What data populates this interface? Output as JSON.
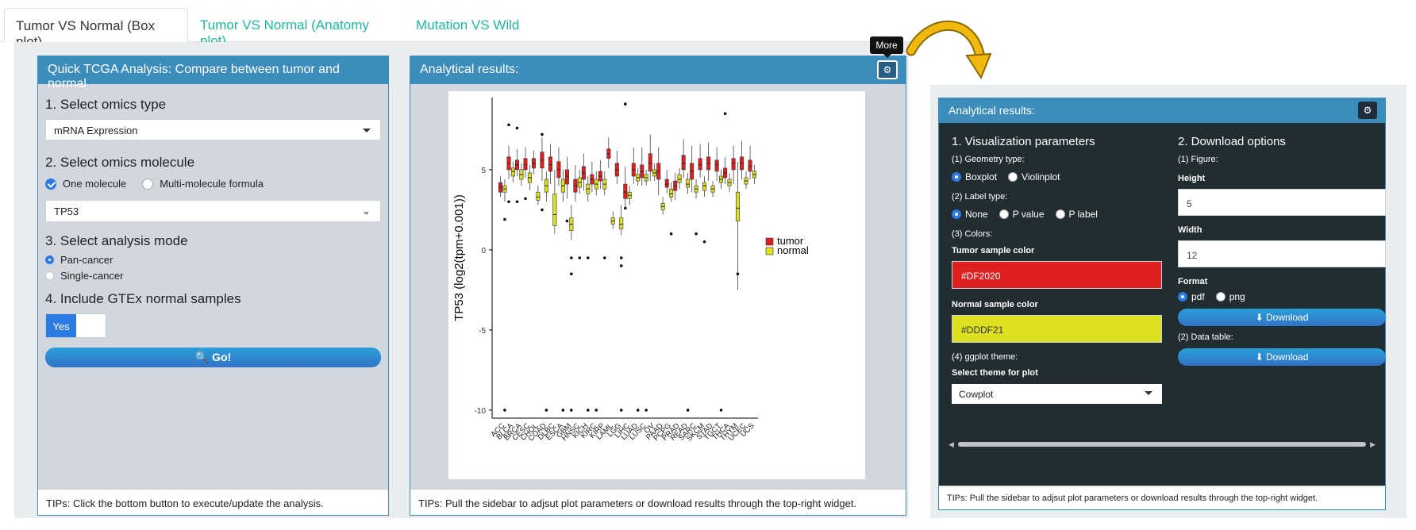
{
  "tabs": [
    {
      "label": "Tumor VS Normal (Box plot)"
    },
    {
      "label": "Tumor VS Normal (Anatomy plot)"
    },
    {
      "label": "Mutation VS Wild"
    }
  ],
  "left_panel": {
    "title": "Quick TCGA Analysis: Compare between tumor and normal",
    "step1": "1. Select omics type",
    "omics_type": "mRNA Expression",
    "step2": "2. Select omics molecule",
    "radio_one": "One molecule",
    "radio_multi": "Multi-molecule formula",
    "molecule": "TP53",
    "step3": "3. Select analysis mode",
    "mode_pan": "Pan-cancer",
    "mode_single": "Single-cancer",
    "step4": "4. Include GTEx normal samples",
    "toggle": "Yes",
    "go": "Go!",
    "tip": "TIPs: Click the bottom button to execute/update the analysis."
  },
  "mid_panel": {
    "title": "Analytical results:",
    "tooltip": "More",
    "tip": "TIPs: Pull the sidebar to adjsut plot parameters or download results through the top-right widget."
  },
  "right_panel": {
    "title": "Analytical results:",
    "viz_title": "1. Visualization parameters",
    "geom_label": "(1) Geometry type:",
    "geom_box": "Boxplot",
    "geom_violin": "Violinplot",
    "label_label": "(2) Label type:",
    "label_none": "None",
    "label_pvalue": "P value",
    "label_plabel": "P label",
    "colors_label": "(3) Colors:",
    "tumor_color_label": "Tumor sample color",
    "tumor_color": "#DF2020",
    "normal_color_label": "Normal sample color",
    "normal_color": "#DDDF21",
    "theme_label": "(4) ggplot theme:",
    "theme_select_label": "Select theme for plot",
    "theme": "Cowplot",
    "dl_title": "2. Download options",
    "figure_label": "(1) Figure:",
    "height_label": "Height",
    "height": "5",
    "width_label": "Width",
    "width": "12",
    "format_label": "Format",
    "fmt_pdf": "pdf",
    "fmt_png": "png",
    "download": "Download",
    "datatable_label": "(2) Data table:",
    "tip": "TIPs: Pull the sidebar to adjsut plot parameters or download results through the top-right widget."
  },
  "chart_data": {
    "type": "box",
    "ylabel": "TP53 (log2(tpm+0.001))",
    "ylim": [
      -10.5,
      9.5
    ],
    "yticks": [
      -10,
      -5,
      0,
      5
    ],
    "categories": [
      "ACC",
      "BLCA",
      "BRCA",
      "CESC",
      "CHOL",
      "COAD",
      "DLBC",
      "ESCA",
      "GBM",
      "HNSC",
      "KICH",
      "KIRC",
      "KIRP",
      "LAML",
      "LGG",
      "LIHC",
      "LUAD",
      "LUSC",
      "OV",
      "PAAD",
      "PCPG",
      "PRAD",
      "READ",
      "SARC",
      "SKCM",
      "STAD",
      "TGCT",
      "THCA",
      "THYM",
      "UCEC",
      "UCS"
    ],
    "series": [
      {
        "name": "tumor",
        "color": "#DF2020",
        "boxes": [
          [
            3.3,
            3.6,
            3.9,
            4.2,
            4.6
          ],
          [
            4.4,
            5.0,
            5.4,
            5.8,
            6.5
          ],
          [
            4.6,
            5.0,
            5.3,
            5.6,
            6.3
          ],
          [
            4.5,
            5.0,
            5.3,
            5.7,
            6.4
          ],
          [
            4.7,
            5.1,
            5.4,
            5.7,
            6.2
          ],
          [
            4.3,
            5.1,
            5.6,
            6.1,
            7.0
          ],
          [
            4.1,
            4.9,
            5.3,
            5.8,
            6.6
          ],
          [
            4.0,
            4.5,
            5.0,
            5.5,
            6.4
          ],
          [
            3.2,
            4.1,
            4.6,
            5.0,
            5.8
          ],
          [
            3.0,
            3.6,
            4.0,
            4.4,
            5.3
          ],
          [
            3.7,
            4.4,
            4.8,
            5.2,
            6.0
          ],
          [
            3.6,
            4.1,
            4.4,
            4.7,
            5.5
          ],
          [
            3.8,
            4.3,
            4.6,
            4.9,
            5.6
          ],
          [
            5.1,
            5.7,
            6.0,
            6.3,
            7.0
          ],
          [
            4.1,
            4.6,
            5.0,
            5.4,
            6.2
          ],
          [
            2.6,
            3.2,
            3.6,
            4.1,
            5.2
          ],
          [
            4.1,
            4.6,
            5.0,
            5.4,
            6.4
          ],
          [
            4.0,
            4.5,
            4.9,
            5.3,
            6.4
          ],
          [
            4.3,
            4.9,
            5.4,
            6.0,
            7.2
          ],
          [
            3.4,
            4.4,
            4.9,
            5.4,
            6.4
          ],
          [
            3.5,
            3.9,
            4.1,
            4.4,
            5.0
          ],
          [
            3.1,
            3.7,
            4.0,
            4.3,
            4.8
          ],
          [
            4.5,
            5.0,
            5.4,
            5.9,
            6.9
          ],
          [
            3.6,
            4.4,
            4.9,
            5.4,
            6.5
          ],
          [
            4.5,
            5.0,
            5.3,
            5.7,
            6.6
          ],
          [
            4.3,
            5.0,
            5.4,
            5.8,
            6.7
          ],
          [
            4.3,
            4.9,
            5.3,
            5.6,
            6.4
          ],
          [
            4.1,
            4.5,
            4.8,
            5.1,
            5.8
          ],
          [
            4.1,
            5.0,
            5.4,
            5.7,
            6.5
          ],
          [
            4.4,
            5.0,
            5.4,
            5.8,
            6.8
          ],
          [
            4.4,
            4.9,
            5.2,
            5.6,
            6.5
          ]
        ],
        "outliers": [
          [],
          [
            7.8,
            3.0
          ],
          [
            7.6,
            3.0
          ],
          [
            3.2
          ],
          [],
          [
            7.2,
            2.5
          ],
          [],
          [],
          [
            1.8
          ],
          [],
          [],
          [],
          [],
          [],
          [],
          [
            9.1,
            2.6
          ],
          [],
          [],
          [],
          [],
          [],
          [],
          [],
          [],
          [],
          [],
          [],
          [
            8.5
          ],
          [],
          [],
          []
        ]
      },
      {
        "name": "normal",
        "color": "#DDDF21",
        "boxes": [
          [
            3.0,
            3.6,
            3.8,
            4.0,
            4.4
          ],
          [
            4.2,
            4.6,
            4.9,
            5.1,
            5.5
          ],
          [
            4.0,
            4.4,
            4.7,
            5.0,
            5.4
          ],
          [
            3.7,
            4.2,
            4.5,
            4.8,
            5.3
          ],
          [
            2.8,
            3.1,
            3.3,
            3.6,
            4.0
          ],
          [
            3.0,
            3.6,
            4.0,
            4.4,
            4.9
          ],
          [
            1.0,
            1.5,
            2.2,
            3.5,
            5.0
          ],
          [
            3.0,
            3.6,
            4.0,
            4.4,
            5.0
          ],
          [
            0.6,
            1.2,
            1.6,
            2.0,
            2.8
          ],
          [
            3.5,
            3.9,
            4.2,
            4.5,
            5.0
          ],
          [
            3.0,
            3.5,
            3.8,
            4.1,
            4.6
          ],
          [
            3.4,
            3.8,
            4.1,
            4.4,
            4.9
          ],
          [
            3.4,
            3.8,
            4.1,
            4.4,
            4.9
          ],
          [
            1.3,
            1.6,
            1.8,
            2.0,
            2.4
          ],
          [
            0.9,
            1.3,
            1.6,
            2.0,
            2.8
          ],
          [
            2.8,
            3.2,
            3.4,
            3.6,
            4.0
          ],
          [
            4.0,
            4.3,
            4.5,
            4.7,
            5.1
          ],
          [
            4.0,
            4.3,
            4.5,
            4.7,
            5.0
          ],
          [
            4.3,
            4.6,
            4.8,
            5.0,
            5.4
          ],
          [
            2.2,
            2.5,
            2.7,
            2.9,
            3.3
          ],
          [
            3.0,
            3.3,
            3.5,
            3.8,
            4.2
          ],
          [
            3.8,
            4.2,
            4.4,
            4.7,
            5.1
          ],
          [
            3.5,
            3.9,
            4.1,
            4.4,
            4.8
          ],
          [
            3.2,
            3.6,
            3.8,
            4.0,
            4.4
          ],
          [
            3.3,
            3.7,
            4.0,
            4.2,
            4.6
          ],
          [
            3.3,
            3.6,
            3.8,
            4.0,
            4.3
          ],
          [
            3.8,
            4.2,
            4.4,
            4.6,
            5.0
          ],
          [
            3.6,
            4.0,
            4.2,
            4.4,
            4.8
          ],
          [
            -2.5,
            1.8,
            2.6,
            3.6,
            5.5
          ],
          [
            3.8,
            4.1,
            4.3,
            4.5,
            4.9
          ],
          [
            4.1,
            4.5,
            4.7,
            4.9,
            5.3
          ]
        ],
        "outliers": [
          [
            1.9,
            -10
          ],
          [],
          [],
          [],
          [],
          [
            -10
          ],
          [],
          [
            -10
          ],
          [
            -0.5,
            -1.5,
            -10
          ],
          [
            -0.5
          ],
          [
            -10,
            -0.5
          ],
          [
            -10
          ],
          [
            -0.5
          ],
          [],
          [
            -0.5,
            -1.0,
            -10
          ],
          [],
          [
            -10
          ],
          [
            -10
          ],
          [],
          [],
          [
            1.0
          ],
          [],
          [
            -10
          ],
          [
            1.0
          ],
          [
            0.5
          ],
          [],
          [
            -10
          ],
          [],
          [
            -1.5
          ],
          [],
          []
        ]
      }
    ],
    "legend": "right"
  }
}
